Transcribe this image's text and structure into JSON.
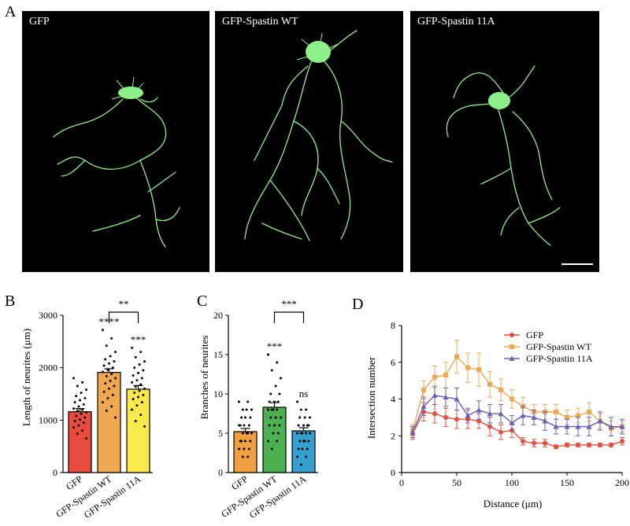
{
  "panel_labels": {
    "a": "A",
    "b": "B",
    "c": "C",
    "d": "D"
  },
  "micrographs": [
    {
      "label": "GFP"
    },
    {
      "label": "GFP-Spastin WT"
    },
    {
      "label": "GFP-Spastin 11A"
    }
  ],
  "colors": {
    "gfp": "#e74c3c",
    "wt": "#f0a850",
    "mut": "#6a5fb5",
    "c_gfp": "#f0a040",
    "c_wt": "#4caf50",
    "c_mut": "#35a0cf",
    "b_mut": "#fbe84a",
    "neuron": "#8ef088"
  },
  "chart_data": [
    {
      "type": "bar",
      "panel": "B",
      "categories": [
        "GFP",
        "GFP-Spastin WT",
        "GFP-Spastin 11A"
      ],
      "values": [
        1160,
        1910,
        1590
      ],
      "errors": [
        60,
        70,
        70
      ],
      "ylabel": "Length of neurites (μm)",
      "ylim": [
        0,
        3000
      ],
      "yticks": [
        "0",
        "1000",
        "2000",
        "3000"
      ],
      "bar_annotations": [
        "",
        "****",
        "***"
      ],
      "comparison": {
        "from": 1,
        "to": 2,
        "label": "**"
      },
      "points": [
        [
          1800,
          1720,
          1650,
          1580,
          1520,
          1460,
          1420,
          1380,
          1340,
          1300,
          1260,
          1220,
          1200,
          1180,
          1150,
          1120,
          1080,
          1050,
          1010,
          980,
          950,
          900,
          860,
          800,
          740,
          650
        ],
        [
          2720,
          2560,
          2420,
          2300,
          2220,
          2160,
          2120,
          2080,
          2040,
          2000,
          1960,
          1920,
          1880,
          1840,
          1800,
          1750,
          1700,
          1650,
          1600,
          1540,
          1480,
          1420,
          1340,
          1260,
          1180,
          1050
        ],
        [
          2380,
          2300,
          2200,
          2120,
          2060,
          2000,
          1950,
          1900,
          1850,
          1800,
          1760,
          1720,
          1680,
          1640,
          1600,
          1560,
          1520,
          1480,
          1440,
          1400,
          1340,
          1280,
          1200,
          1100,
          980,
          880
        ]
      ]
    },
    {
      "type": "bar",
      "panel": "C",
      "categories": [
        "GFP",
        "GFP-Spastin WT",
        "GFP-Spastin 11A"
      ],
      "values": [
        5.2,
        8.3,
        5.3
      ],
      "errors": [
        0.4,
        0.6,
        0.4
      ],
      "ylabel": "Branches of neurites",
      "ylim": [
        0,
        20
      ],
      "yticks": [
        "0",
        "5",
        "10",
        "15",
        "20"
      ],
      "bar_annotations": [
        "",
        "***",
        "ns"
      ],
      "comparison": {
        "from": 1,
        "to": 2,
        "label": "***"
      },
      "points": [
        [
          9,
          9,
          8,
          8,
          8,
          7,
          7,
          7,
          6,
          6,
          6,
          6,
          5,
          5,
          5,
          5,
          4,
          4,
          4,
          4,
          3,
          3,
          3,
          2,
          2
        ],
        [
          15,
          14,
          13,
          12,
          11,
          10,
          10,
          9,
          9,
          9,
          8,
          8,
          8,
          8,
          7,
          7,
          7,
          6,
          6,
          6,
          5,
          5,
          4,
          4,
          3
        ],
        [
          9,
          8,
          8,
          7,
          7,
          7,
          6,
          6,
          6,
          6,
          5,
          5,
          5,
          5,
          5,
          4,
          4,
          4,
          4,
          3,
          3,
          3,
          2,
          2,
          1
        ]
      ]
    },
    {
      "type": "line",
      "panel": "D",
      "xlabel": "Distance (μm)",
      "ylabel": "Intersection number",
      "xlim": [
        0,
        200
      ],
      "ylim": [
        0,
        8
      ],
      "xticks": [
        "0",
        "50",
        "100",
        "150",
        "200"
      ],
      "yticks": [
        "0",
        "2",
        "4",
        "6",
        "8"
      ],
      "legend_position": "top-right",
      "x": [
        10,
        20,
        30,
        40,
        50,
        60,
        70,
        80,
        90,
        100,
        110,
        120,
        130,
        140,
        150,
        160,
        170,
        180,
        190,
        200
      ],
      "series": [
        {
          "name": "GFP",
          "values": [
            2.1,
            3.3,
            3.2,
            3.0,
            2.9,
            2.9,
            2.8,
            2.5,
            2.2,
            2.3,
            1.7,
            1.6,
            1.6,
            1.4,
            1.5,
            1.5,
            1.5,
            1.5,
            1.5,
            1.7
          ],
          "errors": [
            0.3,
            0.5,
            0.5,
            0.5,
            0.5,
            0.5,
            0.4,
            0.5,
            0.4,
            0.4,
            0.2,
            0.2,
            0.2,
            0.1,
            0.1,
            0.1,
            0.1,
            0.1,
            0.1,
            0.2
          ]
        },
        {
          "name": "GFP-Spastin WT",
          "values": [
            2.3,
            4.5,
            5.2,
            5.3,
            6.3,
            5.7,
            5.6,
            4.8,
            4.5,
            4.0,
            3.6,
            3.3,
            3.3,
            3.3,
            3.0,
            3.1,
            3.3,
            2.8,
            2.4,
            2.5
          ],
          "errors": [
            0.3,
            0.5,
            0.6,
            0.7,
            0.9,
            0.8,
            0.9,
            0.7,
            0.6,
            0.5,
            0.5,
            0.4,
            0.4,
            0.4,
            0.4,
            0.4,
            0.5,
            0.4,
            0.4,
            0.3
          ]
        },
        {
          "name": "GFP-Spastin 11A",
          "values": [
            2.2,
            3.6,
            4.2,
            4.1,
            4.0,
            3.1,
            3.4,
            3.2,
            3.2,
            2.7,
            3.1,
            3.0,
            2.8,
            2.5,
            2.5,
            2.5,
            2.5,
            2.8,
            2.5,
            2.5
          ],
          "errors": [
            0.3,
            0.5,
            0.5,
            0.5,
            0.6,
            0.4,
            0.5,
            0.5,
            0.5,
            0.4,
            0.5,
            0.4,
            0.5,
            0.4,
            0.4,
            0.5,
            0.5,
            0.5,
            0.5,
            0.4
          ]
        }
      ]
    }
  ]
}
